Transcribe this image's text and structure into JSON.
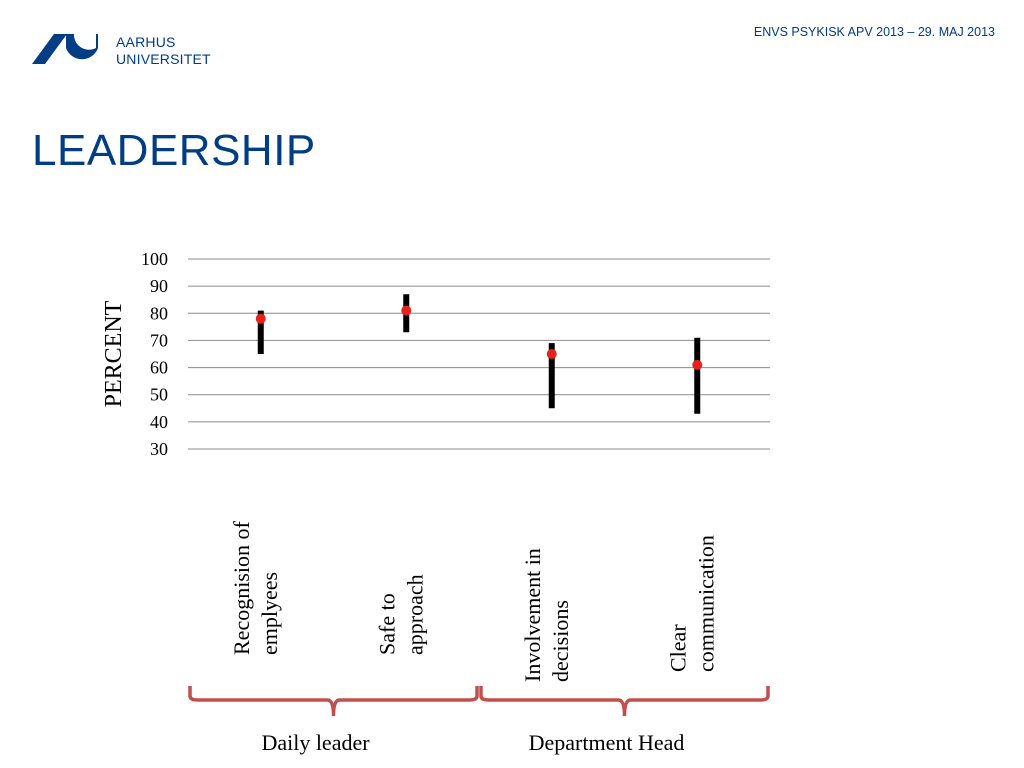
{
  "header": {
    "brand_line1": "AARHUS",
    "brand_line2": "UNIVERSITET",
    "event": "ENVS PSYKISK APV 2013 – 29. MAJ 2013",
    "logo_icon": "aarhus-university-logo",
    "brand_color": "#003d85"
  },
  "slide": {
    "title": "LEADERSHIP"
  },
  "chart_data": {
    "type": "range",
    "ylabel": "PERCENT",
    "xlabel": "",
    "ylim": [
      30,
      100
    ],
    "yticks": [
      30,
      40,
      50,
      60,
      70,
      80,
      90,
      100
    ],
    "grid": true,
    "categories": [
      [
        "Recognision of",
        "emplyees"
      ],
      [
        "Safe to",
        "approach"
      ],
      [
        "Involvement in",
        "decisions"
      ],
      [
        "Clear",
        "communication"
      ]
    ],
    "high": [
      81,
      87,
      69,
      71
    ],
    "low": [
      65,
      73,
      45,
      43
    ],
    "mean": [
      78,
      81,
      65,
      61
    ],
    "groups": [
      {
        "label": "Daily leader",
        "categories": [
          0,
          1
        ]
      },
      {
        "label": "Department Head",
        "categories": [
          2,
          3
        ]
      }
    ],
    "colors": {
      "range_bar": "#000000",
      "mean_point": "#e8221b",
      "grid": "#8c8c8c",
      "bracket": "#c0504d"
    }
  }
}
